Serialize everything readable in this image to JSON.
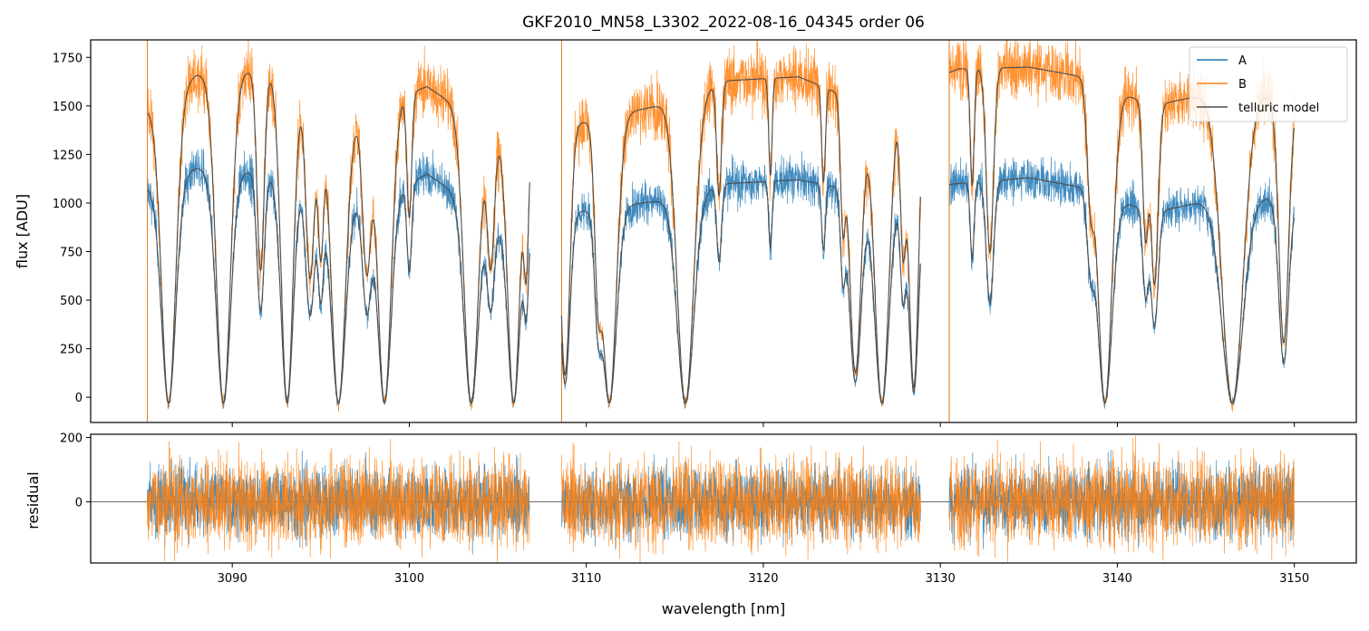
{
  "chart_data": {
    "type": "line",
    "title": "GKF2010_MN58_L3302_2022-08-16_04345  order 06",
    "xlabel": "wavelength [nm]",
    "xlim": [
      3082,
      3153.5
    ],
    "xticks": [
      3090,
      3100,
      3110,
      3120,
      3130,
      3140,
      3150
    ],
    "xtick_labels": [
      "3090",
      "3100",
      "3110",
      "3120",
      "3130",
      "3140",
      "3150"
    ],
    "top_panel": {
      "ylabel": "flux [ADU]",
      "ylim": [
        -130,
        1840
      ],
      "yticks": [
        0,
        250,
        500,
        750,
        1000,
        1250,
        1500,
        1750
      ],
      "ytick_labels": [
        "0",
        "250",
        "500",
        "750",
        "1000",
        "1250",
        "1500",
        "1750"
      ]
    },
    "bottom_panel": {
      "ylabel": "residual",
      "ylim": [
        -190,
        210
      ],
      "yticks": [
        0,
        200
      ],
      "ytick_labels": [
        "0",
        "200"
      ],
      "zero_line": 0
    },
    "segments": [
      [
        3085.2,
        3106.8
      ],
      [
        3108.6,
        3128.9
      ],
      [
        3130.5,
        3150.0
      ]
    ],
    "continuum": {
      "A": [
        [
          3085.2,
          1080
        ],
        [
          3088,
          1180
        ],
        [
          3092,
          1150
        ],
        [
          3098,
          1000
        ],
        [
          3101,
          1150
        ],
        [
          3105,
          900
        ],
        [
          3109,
          950
        ],
        [
          3114,
          1010
        ],
        [
          3118,
          1100
        ],
        [
          3122,
          1120
        ],
        [
          3126,
          1050
        ],
        [
          3131,
          1100
        ],
        [
          3135,
          1130
        ],
        [
          3138,
          1080
        ],
        [
          3142,
          950
        ],
        [
          3147,
          1050
        ],
        [
          3150,
          1000
        ]
      ],
      "B": [
        [
          3085.2,
          1480
        ],
        [
          3088,
          1660
        ],
        [
          3092,
          1680
        ],
        [
          3097,
          1450
        ],
        [
          3101,
          1600
        ],
        [
          3105,
          1350
        ],
        [
          3109,
          1400
        ],
        [
          3114,
          1500
        ],
        [
          3118,
          1630
        ],
        [
          3122,
          1650
        ],
        [
          3126,
          1500
        ],
        [
          3131,
          1690
        ],
        [
          3135,
          1700
        ],
        [
          3138,
          1650
        ],
        [
          3142,
          1500
        ],
        [
          3147,
          1600
        ],
        [
          3150,
          1500
        ]
      ]
    },
    "absorption_lines": [
      [
        3086.4,
        0.3,
        1.0
      ],
      [
        3089.5,
        0.3,
        1.0
      ],
      [
        3091.6,
        0.15,
        0.6
      ],
      [
        3093.1,
        0.25,
        1.0
      ],
      [
        3094.4,
        0.18,
        0.6
      ],
      [
        3095.0,
        0.12,
        0.5
      ],
      [
        3096.0,
        0.3,
        1.0
      ],
      [
        3097.6,
        0.18,
        0.55
      ],
      [
        3098.6,
        0.28,
        1.0
      ],
      [
        3100.0,
        0.1,
        0.4
      ],
      [
        3103.5,
        0.3,
        1.0
      ],
      [
        3104.6,
        0.15,
        0.5
      ],
      [
        3105.9,
        0.25,
        1.0
      ],
      [
        3106.6,
        0.1,
        0.5
      ],
      [
        3108.8,
        0.2,
        0.9
      ],
      [
        3110.7,
        0.15,
        0.6
      ],
      [
        3111.3,
        0.3,
        1.0
      ],
      [
        3115.6,
        0.35,
        1.0
      ],
      [
        3117.5,
        0.1,
        0.35
      ],
      [
        3120.4,
        0.07,
        0.3
      ],
      [
        3123.4,
        0.08,
        0.3
      ],
      [
        3124.5,
        0.1,
        0.4
      ],
      [
        3125.2,
        0.25,
        0.9
      ],
      [
        3126.7,
        0.3,
        1.0
      ],
      [
        3127.9,
        0.12,
        0.5
      ],
      [
        3128.5,
        0.2,
        0.95
      ],
      [
        3131.8,
        0.08,
        0.35
      ],
      [
        3132.8,
        0.15,
        0.55
      ],
      [
        3138.5,
        0.15,
        0.35
      ],
      [
        3139.3,
        0.3,
        1.0
      ],
      [
        3141.6,
        0.12,
        0.45
      ],
      [
        3142.1,
        0.15,
        0.6
      ],
      [
        3146.5,
        0.45,
        1.0
      ],
      [
        3149.4,
        0.2,
        0.8
      ]
    ],
    "series": [
      {
        "name": "A",
        "color": "#1f77b4",
        "noise_top": 60,
        "noise_resid": 55
      },
      {
        "name": "B",
        "color": "#ff7f0e",
        "noise_top": 80,
        "noise_resid": 70
      },
      {
        "name": "telluric model",
        "color": "#4d4d4d"
      }
    ],
    "legend": {
      "position": "top-right",
      "entries": [
        "A",
        "B",
        "telluric model"
      ]
    }
  }
}
